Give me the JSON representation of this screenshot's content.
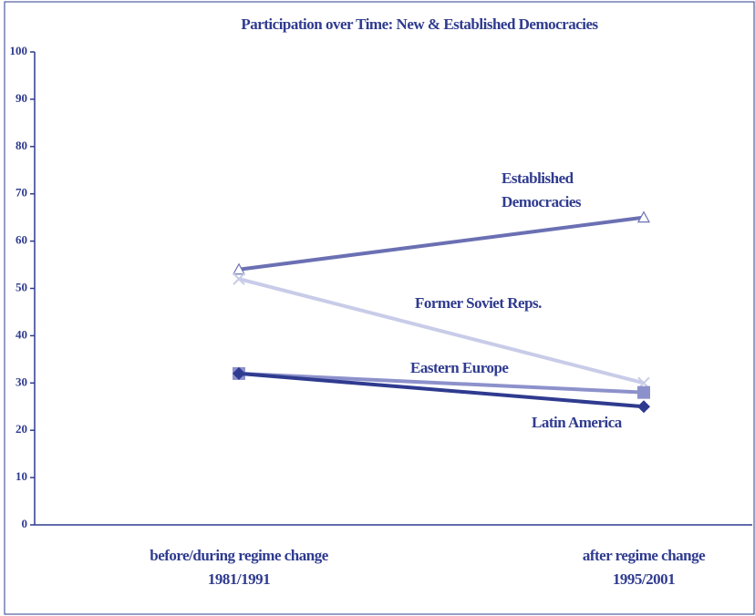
{
  "chart_data": {
    "type": "line",
    "title": "Participation over Time: New & Established Democracies",
    "categories": [
      "before/during regime change\n1981/1991",
      "after regime change\n1995/2001"
    ],
    "series": [
      {
        "name": "Established Democracies",
        "color": "#6b70b3",
        "marker": "triangle",
        "values": [
          54,
          65
        ]
      },
      {
        "name": "Former Soviet Reps.",
        "color": "#c9cce8",
        "marker": "x",
        "values": [
          52,
          30
        ]
      },
      {
        "name": "Eastern Europe",
        "color": "#8d91cb",
        "marker": "square",
        "values": [
          32,
          28
        ]
      },
      {
        "name": "Latin America",
        "color": "#2f3b8f",
        "marker": "diamond",
        "values": [
          32,
          25
        ]
      }
    ],
    "ylim": [
      0,
      100
    ],
    "yticks": [
      0,
      10,
      20,
      30,
      40,
      50,
      60,
      70,
      80,
      90,
      100
    ],
    "grid": false
  }
}
